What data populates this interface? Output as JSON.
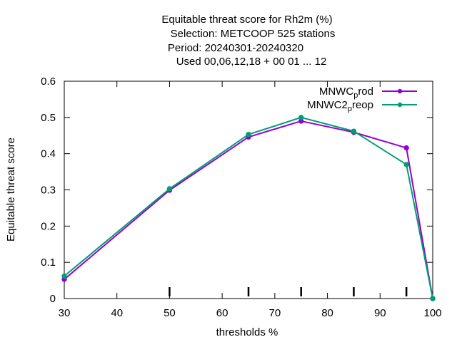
{
  "chart_data": {
    "type": "line",
    "title_lines": [
      "Equitable threat score  for Rh2m (%)",
      "Selection: METCOOP    525 stations",
      "Period: 20240301-20240320",
      "Used  00,06,12,18 + 00 01 ... 12"
    ],
    "xlabel": "thresholds %",
    "ylabel": "Equitable threat score",
    "xlim": [
      30,
      100
    ],
    "ylim": [
      0,
      0.6
    ],
    "xticks": [
      "30",
      "40",
      "50",
      "60",
      "70",
      "80",
      "90",
      "100"
    ],
    "yticks": [
      "0",
      "0.1",
      "0.2",
      "0.3",
      "0.4",
      "0.5",
      "0.6"
    ],
    "x_minor_marks": [
      50,
      65,
      75,
      85,
      95
    ],
    "grid": false,
    "legend_position": "top-right",
    "series": [
      {
        "name_main": "MNWC",
        "name_sub": "p",
        "name_tail": "rod",
        "color": "#9400d3",
        "x": [
          30,
          50,
          65,
          75,
          85,
          95,
          100
        ],
        "y": [
          0.053,
          0.299,
          0.446,
          0.49,
          0.459,
          0.416,
          0.0
        ]
      },
      {
        "name_main": "MNWC2",
        "name_sub": "p",
        "name_tail": "reop",
        "color": "#009e73",
        "x": [
          30,
          50,
          65,
          75,
          85,
          95,
          100
        ],
        "y": [
          0.062,
          0.303,
          0.453,
          0.5,
          0.462,
          0.37,
          0.0
        ]
      }
    ]
  }
}
